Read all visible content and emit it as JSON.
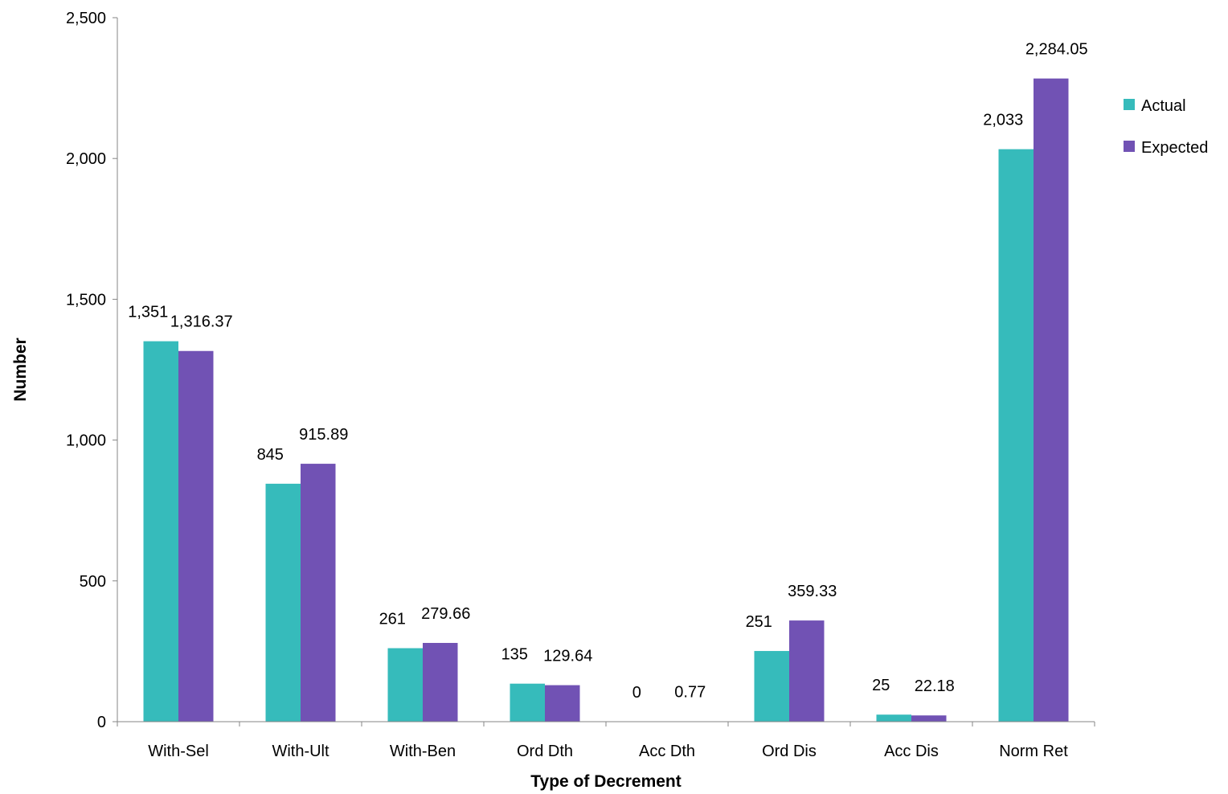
{
  "chart_data": {
    "type": "bar",
    "title": "",
    "xlabel": "Type of Decrement",
    "ylabel": "Number",
    "ylim": [
      0,
      2500
    ],
    "yticks": [
      0,
      500,
      1000,
      1500,
      2000,
      2500
    ],
    "ytick_labels": [
      "0",
      "500",
      "1,000",
      "1,500",
      "2,000",
      "2,500"
    ],
    "grid": false,
    "legend_position": "right",
    "categories": [
      "With-Sel",
      "With-Ult",
      "With-Ben",
      "Ord Dth",
      "Acc Dth",
      "Ord Dis",
      "Acc Dis",
      "Norm Ret"
    ],
    "series": [
      {
        "name": "Actual",
        "color": "#36BBBB",
        "values": [
          1351,
          845,
          261,
          135,
          0,
          251,
          25,
          2033
        ],
        "labels": [
          "1,351",
          "845",
          "261",
          "135",
          "0",
          "251",
          "25",
          "2,033"
        ]
      },
      {
        "name": "Expected",
        "color": "#7152B4",
        "values": [
          1316.37,
          915.89,
          279.66,
          129.64,
          0.77,
          359.33,
          22.18,
          2284.05
        ],
        "labels": [
          "1,316.37",
          "915.89",
          "279.66",
          "129.64",
          "0.77",
          "359.33",
          "22.18",
          "2,284.05"
        ]
      }
    ]
  }
}
